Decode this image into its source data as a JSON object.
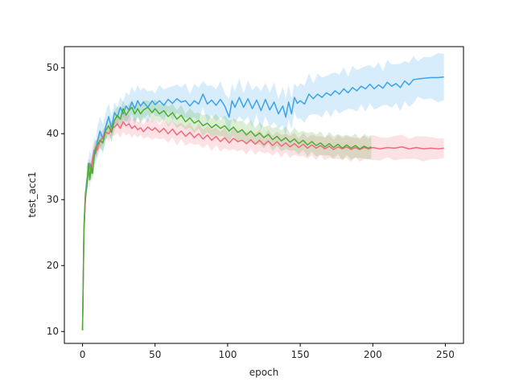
{
  "chart_data": {
    "type": "line",
    "title": "",
    "xlabel": "epoch",
    "ylabel": "test_acc1",
    "xlim": [
      -12.5,
      262.5
    ],
    "ylim": [
      8.2,
      53.2
    ],
    "xticks": [
      0,
      50,
      100,
      150,
      200,
      250
    ],
    "yticks": [
      10,
      20,
      30,
      40,
      50
    ],
    "grid": false,
    "legend": "none",
    "series": [
      {
        "color": "#3ba3ec",
        "band": true,
        "points": [
          [
            0,
            10.2
          ],
          [
            1,
            25.5
          ],
          [
            2,
            30.5
          ],
          [
            3,
            33.0
          ],
          [
            4,
            34.0
          ],
          [
            5,
            35.5
          ],
          [
            6,
            34.8
          ],
          [
            7,
            36.2
          ],
          [
            8,
            37.5
          ],
          [
            9,
            37.0
          ],
          [
            10,
            38.6
          ],
          [
            12,
            40.4
          ],
          [
            14,
            39.2
          ],
          [
            16,
            41.0
          ],
          [
            18,
            42.6
          ],
          [
            20,
            40.8
          ],
          [
            22,
            43.2
          ],
          [
            24,
            42.5
          ],
          [
            26,
            44.0
          ],
          [
            28,
            43.0
          ],
          [
            30,
            44.2
          ],
          [
            32,
            43.6
          ],
          [
            34,
            44.8
          ],
          [
            36,
            43.8
          ],
          [
            38,
            45.0
          ],
          [
            40,
            44.2
          ],
          [
            42,
            44.8
          ],
          [
            45,
            44.0
          ],
          [
            48,
            45.0
          ],
          [
            50,
            44.4
          ],
          [
            53,
            45.0
          ],
          [
            56,
            44.3
          ],
          [
            59,
            45.2
          ],
          [
            62,
            44.6
          ],
          [
            65,
            45.3
          ],
          [
            68,
            44.8
          ],
          [
            71,
            45.0
          ],
          [
            74,
            44.2
          ],
          [
            77,
            45.0
          ],
          [
            80,
            44.5
          ],
          [
            83,
            46.0
          ],
          [
            86,
            44.5
          ],
          [
            89,
            45.1
          ],
          [
            92,
            44.3
          ],
          [
            95,
            45.2
          ],
          [
            98,
            44.2
          ],
          [
            101,
            42.5
          ],
          [
            103,
            45.0
          ],
          [
            105,
            44.0
          ],
          [
            108,
            45.5
          ],
          [
            111,
            44.0
          ],
          [
            114,
            45.3
          ],
          [
            117,
            43.8
          ],
          [
            120,
            45.1
          ],
          [
            123,
            43.5
          ],
          [
            126,
            45.2
          ],
          [
            129,
            43.6
          ],
          [
            132,
            44.8
          ],
          [
            135,
            43.0
          ],
          [
            138,
            44.2
          ],
          [
            140,
            42.5
          ],
          [
            142,
            44.8
          ],
          [
            144,
            43.0
          ],
          [
            146,
            45.5
          ],
          [
            148,
            44.6
          ],
          [
            150,
            45.0
          ],
          [
            153,
            44.5
          ],
          [
            156,
            46.0
          ],
          [
            159,
            45.3
          ],
          [
            162,
            46.0
          ],
          [
            165,
            45.5
          ],
          [
            168,
            46.2
          ],
          [
            171,
            45.8
          ],
          [
            174,
            46.5
          ],
          [
            177,
            46.0
          ],
          [
            180,
            46.8
          ],
          [
            183,
            46.2
          ],
          [
            186,
            47.0
          ],
          [
            189,
            46.5
          ],
          [
            192,
            47.2
          ],
          [
            195,
            46.8
          ],
          [
            198,
            47.5
          ],
          [
            201,
            46.8
          ],
          [
            204,
            47.4
          ],
          [
            207,
            46.9
          ],
          [
            210,
            47.8
          ],
          [
            213,
            47.2
          ],
          [
            216,
            47.6
          ],
          [
            219,
            47.0
          ],
          [
            222,
            48.0
          ],
          [
            225,
            47.4
          ],
          [
            228,
            48.2
          ],
          [
            231,
            48.3
          ],
          [
            235,
            48.4
          ],
          [
            240,
            48.5
          ],
          [
            245,
            48.5
          ],
          [
            249,
            48.6
          ]
        ]
      },
      {
        "color": "#f2697e",
        "band": true,
        "points": [
          [
            0,
            10.2
          ],
          [
            1,
            25.0
          ],
          [
            2,
            30.0
          ],
          [
            3,
            32.5
          ],
          [
            4,
            34.0
          ],
          [
            5,
            35.2
          ],
          [
            6,
            34.0
          ],
          [
            7,
            36.4
          ],
          [
            8,
            37.0
          ],
          [
            9,
            38.0
          ],
          [
            10,
            37.5
          ],
          [
            12,
            38.8
          ],
          [
            14,
            39.5
          ],
          [
            16,
            40.2
          ],
          [
            18,
            40.0
          ],
          [
            20,
            40.8
          ],
          [
            22,
            41.0
          ],
          [
            24,
            41.5
          ],
          [
            26,
            40.8
          ],
          [
            28,
            41.8
          ],
          [
            30,
            41.2
          ],
          [
            32,
            41.5
          ],
          [
            34,
            40.8
          ],
          [
            36,
            41.2
          ],
          [
            38,
            40.6
          ],
          [
            40,
            40.9
          ],
          [
            42,
            40.3
          ],
          [
            45,
            41.0
          ],
          [
            48,
            40.5
          ],
          [
            50,
            40.9
          ],
          [
            53,
            40.2
          ],
          [
            56,
            40.8
          ],
          [
            59,
            40.0
          ],
          [
            62,
            40.7
          ],
          [
            65,
            39.8
          ],
          [
            68,
            40.4
          ],
          [
            71,
            39.6
          ],
          [
            74,
            40.2
          ],
          [
            77,
            39.4
          ],
          [
            80,
            40.0
          ],
          [
            83,
            39.2
          ],
          [
            86,
            39.8
          ],
          [
            89,
            39.0
          ],
          [
            92,
            39.6
          ],
          [
            95,
            38.8
          ],
          [
            98,
            39.4
          ],
          [
            101,
            38.6
          ],
          [
            104,
            39.3
          ],
          [
            107,
            38.8
          ],
          [
            110,
            39.0
          ],
          [
            113,
            38.5
          ],
          [
            116,
            39.1
          ],
          [
            119,
            38.4
          ],
          [
            122,
            39.0
          ],
          [
            125,
            38.3
          ],
          [
            128,
            38.9
          ],
          [
            131,
            38.2
          ],
          [
            134,
            38.8
          ],
          [
            137,
            38.1
          ],
          [
            140,
            38.6
          ],
          [
            143,
            38.0
          ],
          [
            146,
            38.5
          ],
          [
            149,
            37.9
          ],
          [
            152,
            38.4
          ],
          [
            155,
            37.8
          ],
          [
            158,
            38.3
          ],
          [
            161,
            37.8
          ],
          [
            164,
            38.2
          ],
          [
            167,
            37.7
          ],
          [
            170,
            38.1
          ],
          [
            173,
            37.6
          ],
          [
            176,
            38.0
          ],
          [
            179,
            37.7
          ],
          [
            182,
            38.0
          ],
          [
            185,
            37.6
          ],
          [
            188,
            37.9
          ],
          [
            191,
            37.6
          ],
          [
            194,
            37.9
          ],
          [
            197,
            37.7
          ],
          [
            200,
            37.9
          ],
          [
            205,
            37.7
          ],
          [
            210,
            37.9
          ],
          [
            215,
            37.8
          ],
          [
            220,
            38.0
          ],
          [
            225,
            37.7
          ],
          [
            230,
            37.9
          ],
          [
            235,
            37.7
          ],
          [
            240,
            37.8
          ],
          [
            245,
            37.7
          ],
          [
            249,
            37.8
          ]
        ]
      },
      {
        "color": "#4fae32",
        "band": true,
        "points": [
          [
            0,
            10.2
          ],
          [
            1,
            26.0
          ],
          [
            2,
            31.0
          ],
          [
            3,
            32.0
          ],
          [
            4,
            35.5
          ],
          [
            5,
            33.0
          ],
          [
            6,
            35.2
          ],
          [
            7,
            34.0
          ],
          [
            8,
            36.5
          ],
          [
            9,
            37.5
          ],
          [
            10,
            38.2
          ],
          [
            12,
            39.0
          ],
          [
            14,
            38.6
          ],
          [
            16,
            40.5
          ],
          [
            18,
            41.2
          ],
          [
            20,
            40.2
          ],
          [
            22,
            42.0
          ],
          [
            24,
            42.8
          ],
          [
            26,
            42.2
          ],
          [
            28,
            43.8
          ],
          [
            30,
            42.8
          ],
          [
            32,
            43.5
          ],
          [
            34,
            44.0
          ],
          [
            36,
            43.0
          ],
          [
            38,
            43.8
          ],
          [
            40,
            43.0
          ],
          [
            42,
            43.6
          ],
          [
            45,
            44.0
          ],
          [
            48,
            43.2
          ],
          [
            50,
            43.8
          ],
          [
            53,
            43.0
          ],
          [
            56,
            43.5
          ],
          [
            59,
            42.6
          ],
          [
            62,
            43.2
          ],
          [
            65,
            42.2
          ],
          [
            68,
            42.8
          ],
          [
            71,
            41.8
          ],
          [
            74,
            42.4
          ],
          [
            77,
            41.6
          ],
          [
            80,
            42.0
          ],
          [
            83,
            41.2
          ],
          [
            86,
            41.6
          ],
          [
            89,
            40.9
          ],
          [
            92,
            41.4
          ],
          [
            95,
            40.8
          ],
          [
            98,
            41.2
          ],
          [
            101,
            40.4
          ],
          [
            104,
            41.0
          ],
          [
            107,
            40.2
          ],
          [
            110,
            40.6
          ],
          [
            113,
            39.8
          ],
          [
            116,
            40.4
          ],
          [
            119,
            39.6
          ],
          [
            122,
            40.1
          ],
          [
            125,
            39.4
          ],
          [
            128,
            39.9
          ],
          [
            131,
            39.1
          ],
          [
            134,
            39.6
          ],
          [
            137,
            38.9
          ],
          [
            140,
            39.4
          ],
          [
            143,
            38.7
          ],
          [
            146,
            39.2
          ],
          [
            149,
            38.5
          ],
          [
            152,
            39.0
          ],
          [
            155,
            38.3
          ],
          [
            158,
            38.8
          ],
          [
            161,
            38.2
          ],
          [
            164,
            38.6
          ],
          [
            167,
            38.0
          ],
          [
            170,
            38.5
          ],
          [
            173,
            37.9
          ],
          [
            176,
            38.4
          ],
          [
            179,
            37.8
          ],
          [
            182,
            38.3
          ],
          [
            185,
            37.8
          ],
          [
            188,
            38.2
          ],
          [
            191,
            37.7
          ],
          [
            194,
            38.1
          ],
          [
            197,
            37.8
          ],
          [
            199,
            38.0
          ]
        ]
      }
    ]
  }
}
